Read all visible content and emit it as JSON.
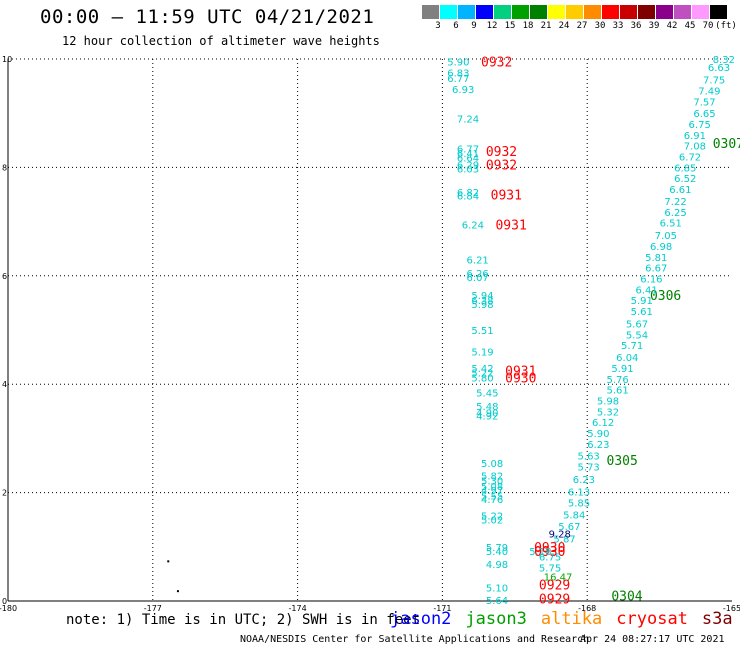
{
  "header": {
    "title": "00:00 – 11:59 UTC 04/21/2021",
    "subtitle": "12 hour collection of altimeter wave heights"
  },
  "colorbar": {
    "colors": [
      "#808080",
      "#00ffff",
      "#00b4ff",
      "#0000ff",
      "#00d080",
      "#00a000",
      "#008000",
      "#ffff00",
      "#ffcc00",
      "#ff8c00",
      "#ff0000",
      "#c80000",
      "#800000",
      "#8b008b",
      "#c050c0",
      "#ff99ff",
      "#000000"
    ],
    "labels": [
      "3",
      "6",
      "9",
      "12",
      "15",
      "18",
      "21",
      "24",
      "27",
      "30",
      "33",
      "36",
      "39",
      "42",
      "45",
      "70",
      "(ft)"
    ]
  },
  "chart_data": {
    "type": "scatter",
    "title": "12 hour collection of altimeter wave heights",
    "xlim": [
      -180,
      -165
    ],
    "ylim": [
      0,
      10
    ],
    "x_ticks": [
      "-180",
      "-177",
      "-174",
      "-171",
      "-168",
      "-165"
    ],
    "y_ticks": [
      "0",
      "2",
      "4",
      "6",
      "8",
      "10"
    ],
    "grid": true,
    "series": [
      {
        "name": "jason2",
        "values": []
      },
      {
        "name": "jason3",
        "color": "#008000",
        "points": [
          {
            "x": -167.5,
            "y": 0.1,
            "label": "0304"
          },
          {
            "x": -165.4,
            "y": 8.45,
            "label": "0307"
          },
          {
            "x": -166.7,
            "y": 5.65,
            "label": "0306"
          },
          {
            "x": -167.6,
            "y": 2.6,
            "label": "0305"
          }
        ]
      },
      {
        "name": "altika",
        "values": []
      },
      {
        "name": "cryosat",
        "color": "#ff0000",
        "points": [
          {
            "x": -170.2,
            "y": 9.95,
            "label": "0932"
          },
          {
            "x": -170.1,
            "y": 8.3,
            "label": "0932"
          },
          {
            "x": -170.1,
            "y": 8.05,
            "label": "0932"
          },
          {
            "x": -170.0,
            "y": 7.5,
            "label": "0931"
          },
          {
            "x": -169.9,
            "y": 6.95,
            "label": "0931"
          },
          {
            "x": -169.7,
            "y": 4.25,
            "label": "0931"
          },
          {
            "x": -169.7,
            "y": 4.12,
            "label": "0930"
          },
          {
            "x": -169.1,
            "y": 1.0,
            "label": "0930"
          },
          {
            "x": -169.1,
            "y": 0.92,
            "label": "0930"
          },
          {
            "x": -169.0,
            "y": 0.3,
            "label": "0929"
          },
          {
            "x": -169.0,
            "y": 0.05,
            "label": "0929"
          }
        ]
      },
      {
        "name": "s3a",
        "values": []
      },
      {
        "name": "swh_cyan",
        "color": "#00cccc",
        "points": [
          {
            "x": -170.9,
            "y": 9.95,
            "label": "5.90"
          },
          {
            "x": -170.9,
            "y": 9.75,
            "label": "6.83"
          },
          {
            "x": -170.9,
            "y": 9.65,
            "label": "6.77"
          },
          {
            "x": -170.8,
            "y": 9.45,
            "label": "6.93"
          },
          {
            "x": -170.7,
            "y": 8.9,
            "label": "7.24"
          },
          {
            "x": -170.7,
            "y": 8.35,
            "label": "6.77"
          },
          {
            "x": -170.7,
            "y": 8.27,
            "label": "6.41"
          },
          {
            "x": -170.7,
            "y": 8.18,
            "label": "6.64"
          },
          {
            "x": -170.7,
            "y": 8.05,
            "label": "6.29"
          },
          {
            "x": -170.7,
            "y": 7.98,
            "label": "6.03"
          },
          {
            "x": -170.7,
            "y": 7.55,
            "label": "6.82"
          },
          {
            "x": -170.7,
            "y": 7.48,
            "label": "6.84"
          },
          {
            "x": -170.6,
            "y": 6.95,
            "label": "6.24"
          },
          {
            "x": -170.5,
            "y": 6.3,
            "label": "6.21"
          },
          {
            "x": -170.5,
            "y": 6.05,
            "label": "6.26"
          },
          {
            "x": -170.5,
            "y": 5.98,
            "label": "6.07"
          },
          {
            "x": -170.4,
            "y": 5.65,
            "label": "5.94"
          },
          {
            "x": -170.4,
            "y": 5.55,
            "label": "6.38"
          },
          {
            "x": -170.4,
            "y": 5.48,
            "label": "5.98"
          },
          {
            "x": -170.4,
            "y": 5.0,
            "label": "5.51"
          },
          {
            "x": -170.4,
            "y": 4.6,
            "label": "5.19"
          },
          {
            "x": -170.4,
            "y": 4.3,
            "label": "5.42"
          },
          {
            "x": -170.4,
            "y": 4.22,
            "label": "5.22"
          },
          {
            "x": -170.4,
            "y": 4.12,
            "label": "5.80"
          },
          {
            "x": -170.3,
            "y": 3.85,
            "label": "5.45"
          },
          {
            "x": -170.3,
            "y": 3.6,
            "label": "5.48"
          },
          {
            "x": -170.3,
            "y": 3.48,
            "label": "4.90"
          },
          {
            "x": -170.3,
            "y": 3.42,
            "label": "4.92"
          },
          {
            "x": -170.2,
            "y": 2.55,
            "label": "5.08"
          },
          {
            "x": -170.2,
            "y": 2.32,
            "label": "5.82"
          },
          {
            "x": -170.2,
            "y": 2.22,
            "label": "5.30"
          },
          {
            "x": -170.2,
            "y": 2.12,
            "label": "5.08"
          },
          {
            "x": -170.2,
            "y": 2.05,
            "label": "4.97"
          },
          {
            "x": -170.2,
            "y": 1.95,
            "label": "5.55"
          },
          {
            "x": -170.2,
            "y": 1.88,
            "label": "4.76"
          },
          {
            "x": -170.2,
            "y": 1.58,
            "label": "5.22"
          },
          {
            "x": -170.2,
            "y": 1.5,
            "label": "5.02"
          },
          {
            "x": -170.1,
            "y": 1.0,
            "label": "5.79"
          },
          {
            "x": -170.1,
            "y": 0.92,
            "label": "5.40"
          },
          {
            "x": -170.1,
            "y": 0.68,
            "label": "4.98"
          },
          {
            "x": -170.1,
            "y": 0.25,
            "label": "5.10"
          },
          {
            "x": -170.1,
            "y": 0.02,
            "label": "5.64"
          },
          {
            "x": -169.2,
            "y": 0.92,
            "label": "5.18"
          },
          {
            "x": -169.0,
            "y": 0.82,
            "label": "6.75"
          },
          {
            "x": -169.0,
            "y": 0.62,
            "label": "5.75"
          },
          {
            "x": -168.7,
            "y": 1.15,
            "label": "5.87"
          },
          {
            "x": -168.6,
            "y": 1.38,
            "label": "5.67"
          },
          {
            "x": -168.5,
            "y": 1.6,
            "label": "5.84"
          },
          {
            "x": -168.4,
            "y": 1.82,
            "label": "5.85"
          },
          {
            "x": -168.4,
            "y": 2.02,
            "label": "6.13"
          },
          {
            "x": -168.3,
            "y": 2.25,
            "label": "6.23"
          },
          {
            "x": -168.2,
            "y": 2.48,
            "label": "5.73"
          },
          {
            "x": -168.2,
            "y": 2.68,
            "label": "5.63"
          },
          {
            "x": -168.0,
            "y": 2.9,
            "label": "6.23"
          },
          {
            "x": -168.0,
            "y": 3.1,
            "label": "5.90"
          },
          {
            "x": -167.9,
            "y": 3.3,
            "label": "6.12"
          },
          {
            "x": -167.8,
            "y": 3.5,
            "label": "5.32"
          },
          {
            "x": -167.8,
            "y": 3.7,
            "label": "5.98"
          },
          {
            "x": -167.6,
            "y": 3.9,
            "label": "5.61"
          },
          {
            "x": -167.6,
            "y": 4.1,
            "label": "5.76"
          },
          {
            "x": -167.5,
            "y": 4.3,
            "label": "5.91"
          },
          {
            "x": -167.4,
            "y": 4.5,
            "label": "6.04"
          },
          {
            "x": -167.3,
            "y": 4.72,
            "label": "5.71"
          },
          {
            "x": -167.2,
            "y": 4.92,
            "label": "5.54"
          },
          {
            "x": -167.2,
            "y": 5.12,
            "label": "5.67"
          },
          {
            "x": -167.1,
            "y": 5.35,
            "label": "5.61"
          },
          {
            "x": -167.1,
            "y": 5.55,
            "label": "5.91"
          },
          {
            "x": -167.0,
            "y": 5.75,
            "label": "6.41"
          },
          {
            "x": -166.9,
            "y": 5.95,
            "label": "6.16"
          },
          {
            "x": -166.8,
            "y": 6.15,
            "label": "6.67"
          },
          {
            "x": -166.8,
            "y": 6.35,
            "label": "5.81"
          },
          {
            "x": -166.7,
            "y": 6.55,
            "label": "6.98"
          },
          {
            "x": -166.6,
            "y": 6.75,
            "label": "7.05"
          },
          {
            "x": -166.5,
            "y": 6.98,
            "label": "6.51"
          },
          {
            "x": -166.4,
            "y": 7.18,
            "label": "6.25"
          },
          {
            "x": -166.4,
            "y": 7.38,
            "label": "7.22"
          },
          {
            "x": -166.3,
            "y": 7.6,
            "label": "6.61"
          },
          {
            "x": -166.2,
            "y": 7.8,
            "label": "6.52"
          },
          {
            "x": -166.2,
            "y": 8.0,
            "label": "6.85"
          },
          {
            "x": -166.1,
            "y": 8.2,
            "label": "6.72"
          },
          {
            "x": -166.0,
            "y": 8.4,
            "label": "7.08"
          },
          {
            "x": -166.0,
            "y": 8.6,
            "label": "6.91"
          },
          {
            "x": -165.9,
            "y": 8.8,
            "label": "6.75"
          },
          {
            "x": -165.8,
            "y": 9.0,
            "label": "6.65"
          },
          {
            "x": -165.8,
            "y": 9.22,
            "label": "7.57"
          },
          {
            "x": -165.7,
            "y": 9.42,
            "label": "7.49"
          },
          {
            "x": -165.6,
            "y": 9.62,
            "label": "7.75"
          },
          {
            "x": -165.5,
            "y": 9.85,
            "label": "6.63"
          },
          {
            "x": -165.4,
            "y": 10.0,
            "label": "8.32"
          }
        ]
      },
      {
        "name": "swh_other",
        "color": "#000080",
        "points": [
          {
            "x": -168.8,
            "y": 1.25,
            "label": "9.28"
          }
        ]
      },
      {
        "name": "swh_green",
        "color": "#00aa00",
        "points": [
          {
            "x": -168.9,
            "y": 0.45,
            "label": "16.47"
          }
        ]
      }
    ],
    "markers": [
      {
        "x": -176.7,
        "y": 0.75
      },
      {
        "x": -176.5,
        "y": 0.2
      }
    ]
  },
  "footer": {
    "note": "note: 1) Time is in UTC; 2) SWH is in feet",
    "satellites": [
      {
        "name": "jason2",
        "color": "#0000ff"
      },
      {
        "name": "jason3",
        "color": "#00a000"
      },
      {
        "name": "altika",
        "color": "#ff8c00"
      },
      {
        "name": "cryosat",
        "color": "#ff0000"
      },
      {
        "name": "s3a",
        "color": "#800000"
      }
    ],
    "credit": "NOAA/NESDIS Center for Satellite Applications and Research",
    "timestamp": "Apr 24 08:27:17 UTC 2021"
  }
}
